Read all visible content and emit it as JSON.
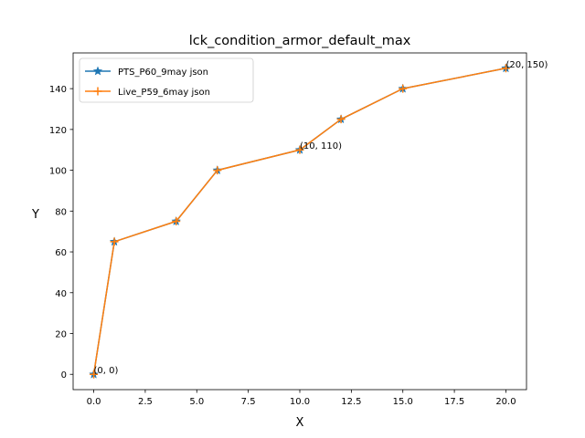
{
  "chart_data": {
    "type": "line",
    "title": "lck_condition_armor_default_max",
    "xlabel": "X",
    "ylabel": "Y",
    "xlim": [
      -1.0,
      21.0
    ],
    "ylim": [
      -7.5,
      157.5
    ],
    "x_ticks": [
      0.0,
      2.5,
      5.0,
      7.5,
      10.0,
      12.5,
      15.0,
      17.5,
      20.0
    ],
    "x_tick_labels": [
      "0.0",
      "2.5",
      "5.0",
      "7.5",
      "10.0",
      "12.5",
      "15.0",
      "17.5",
      "20.0"
    ],
    "y_ticks": [
      0,
      20,
      40,
      60,
      80,
      100,
      120,
      140
    ],
    "y_tick_labels": [
      "0",
      "20",
      "40",
      "60",
      "80",
      "100",
      "120",
      "140"
    ],
    "grid": false,
    "legend_position": "upper-left",
    "series": [
      {
        "name": "PTS_P60_9may json",
        "color": "#1f77b4",
        "marker": "star",
        "x": [
          0,
          1,
          4,
          6,
          10,
          12,
          15,
          20
        ],
        "y": [
          0,
          65,
          75,
          100,
          110,
          125,
          140,
          150
        ]
      },
      {
        "name": "Live_P59_6may json",
        "color": "#ff7f0e",
        "marker": "plus",
        "x": [
          0,
          1,
          4,
          6,
          10,
          12,
          15,
          20
        ],
        "y": [
          0,
          65,
          75,
          100,
          110,
          125,
          140,
          150
        ]
      }
    ],
    "annotations": [
      {
        "text": "(0, 0)",
        "x": 0,
        "y": 0
      },
      {
        "text": "(10, 110)",
        "x": 10,
        "y": 110
      },
      {
        "text": "(20, 150)",
        "x": 20,
        "y": 150
      }
    ]
  }
}
